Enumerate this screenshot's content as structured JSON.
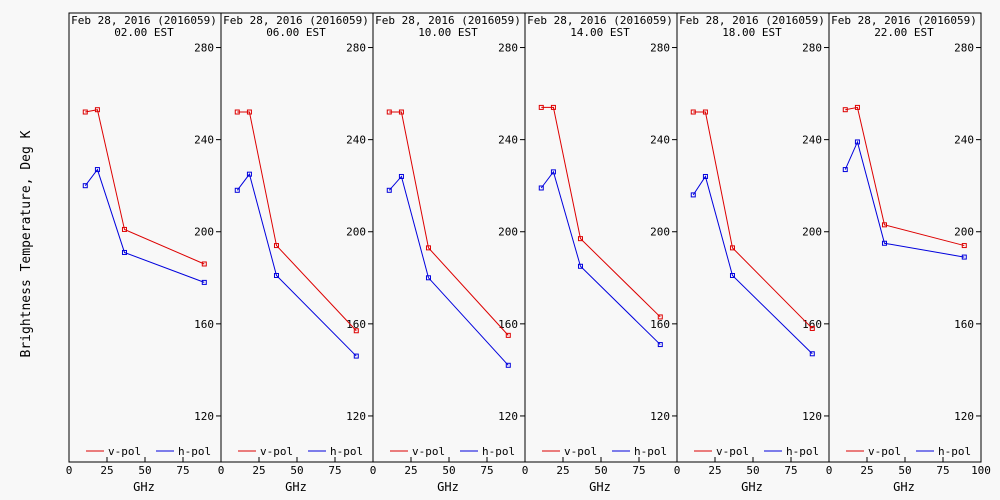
{
  "figure": {
    "ylabel": "Brightness Temperature, Deg K",
    "xlabel": "GHz"
  },
  "colors": {
    "v_pol": "#dd0000",
    "h_pol": "#0000dd",
    "axis": "#000000"
  },
  "chart_data": [
    {
      "type": "line",
      "title": "Feb 28, 2016 (2016059)",
      "subtitle": "02.00 EST",
      "xlabel": "GHz",
      "ylabel": "Brightness Temperature, Deg K",
      "xlim": [
        0,
        100
      ],
      "ylim": [
        100,
        295
      ],
      "xticks": [
        0,
        25,
        50,
        75
      ],
      "yticks": [
        120,
        160,
        200,
        240,
        280
      ],
      "x": [
        10.7,
        18.7,
        36.5,
        89.0
      ],
      "series": [
        {
          "name": "v-pol",
          "values": [
            252,
            253,
            201,
            186
          ]
        },
        {
          "name": "h-pol",
          "values": [
            220,
            227,
            191,
            178
          ]
        }
      ]
    },
    {
      "type": "line",
      "title": "Feb 28, 2016 (2016059)",
      "subtitle": "06.00 EST",
      "xlabel": "GHz",
      "ylabel": "",
      "xlim": [
        0,
        100
      ],
      "ylim": [
        100,
        295
      ],
      "xticks": [
        0,
        25,
        50,
        75
      ],
      "yticks": [
        120,
        160,
        200,
        240,
        280
      ],
      "x": [
        10.7,
        18.7,
        36.5,
        89.0
      ],
      "series": [
        {
          "name": "v-pol",
          "values": [
            252,
            252,
            194,
            157
          ]
        },
        {
          "name": "h-pol",
          "values": [
            218,
            225,
            181,
            146
          ]
        }
      ]
    },
    {
      "type": "line",
      "title": "Feb 28, 2016 (2016059)",
      "subtitle": "10.00 EST",
      "xlabel": "GHz",
      "ylabel": "",
      "xlim": [
        0,
        100
      ],
      "ylim": [
        100,
        295
      ],
      "xticks": [
        0,
        25,
        50,
        75
      ],
      "yticks": [
        120,
        160,
        200,
        240,
        280
      ],
      "x": [
        10.7,
        18.7,
        36.5,
        89.0
      ],
      "series": [
        {
          "name": "v-pol",
          "values": [
            252,
            252,
            193,
            155
          ]
        },
        {
          "name": "h-pol",
          "values": [
            218,
            224,
            180,
            142
          ]
        }
      ]
    },
    {
      "type": "line",
      "title": "Feb 28, 2016 (2016059)",
      "subtitle": "14.00 EST",
      "xlabel": "GHz",
      "ylabel": "",
      "xlim": [
        0,
        100
      ],
      "ylim": [
        100,
        295
      ],
      "xticks": [
        0,
        25,
        50,
        75
      ],
      "yticks": [
        120,
        160,
        200,
        240,
        280
      ],
      "x": [
        10.7,
        18.7,
        36.5,
        89.0
      ],
      "series": [
        {
          "name": "v-pol",
          "values": [
            254,
            254,
            197,
            163
          ]
        },
        {
          "name": "h-pol",
          "values": [
            219,
            226,
            185,
            151
          ]
        }
      ]
    },
    {
      "type": "line",
      "title": "Feb 28, 2016 (2016059)",
      "subtitle": "18.00 EST",
      "xlabel": "GHz",
      "ylabel": "",
      "xlim": [
        0,
        100
      ],
      "ylim": [
        100,
        295
      ],
      "xticks": [
        0,
        25,
        50,
        75
      ],
      "yticks": [
        120,
        160,
        200,
        240,
        280
      ],
      "x": [
        10.7,
        18.7,
        36.5,
        89.0
      ],
      "series": [
        {
          "name": "v-pol",
          "values": [
            252,
            252,
            193,
            158
          ]
        },
        {
          "name": "h-pol",
          "values": [
            216,
            224,
            181,
            147
          ]
        }
      ]
    },
    {
      "type": "line",
      "title": "Feb 28, 2016 (2016059)",
      "subtitle": "22.00 EST",
      "xlabel": "GHz",
      "ylabel": "",
      "xlim": [
        0,
        100
      ],
      "ylim": [
        100,
        295
      ],
      "xticks": [
        0,
        25,
        50,
        75,
        100
      ],
      "yticks": [
        120,
        160,
        200,
        240,
        280
      ],
      "x": [
        10.7,
        18.7,
        36.5,
        89.0
      ],
      "series": [
        {
          "name": "v-pol",
          "values": [
            253,
            254,
            203,
            194
          ]
        },
        {
          "name": "h-pol",
          "values": [
            227,
            239,
            195,
            189
          ]
        }
      ]
    }
  ]
}
